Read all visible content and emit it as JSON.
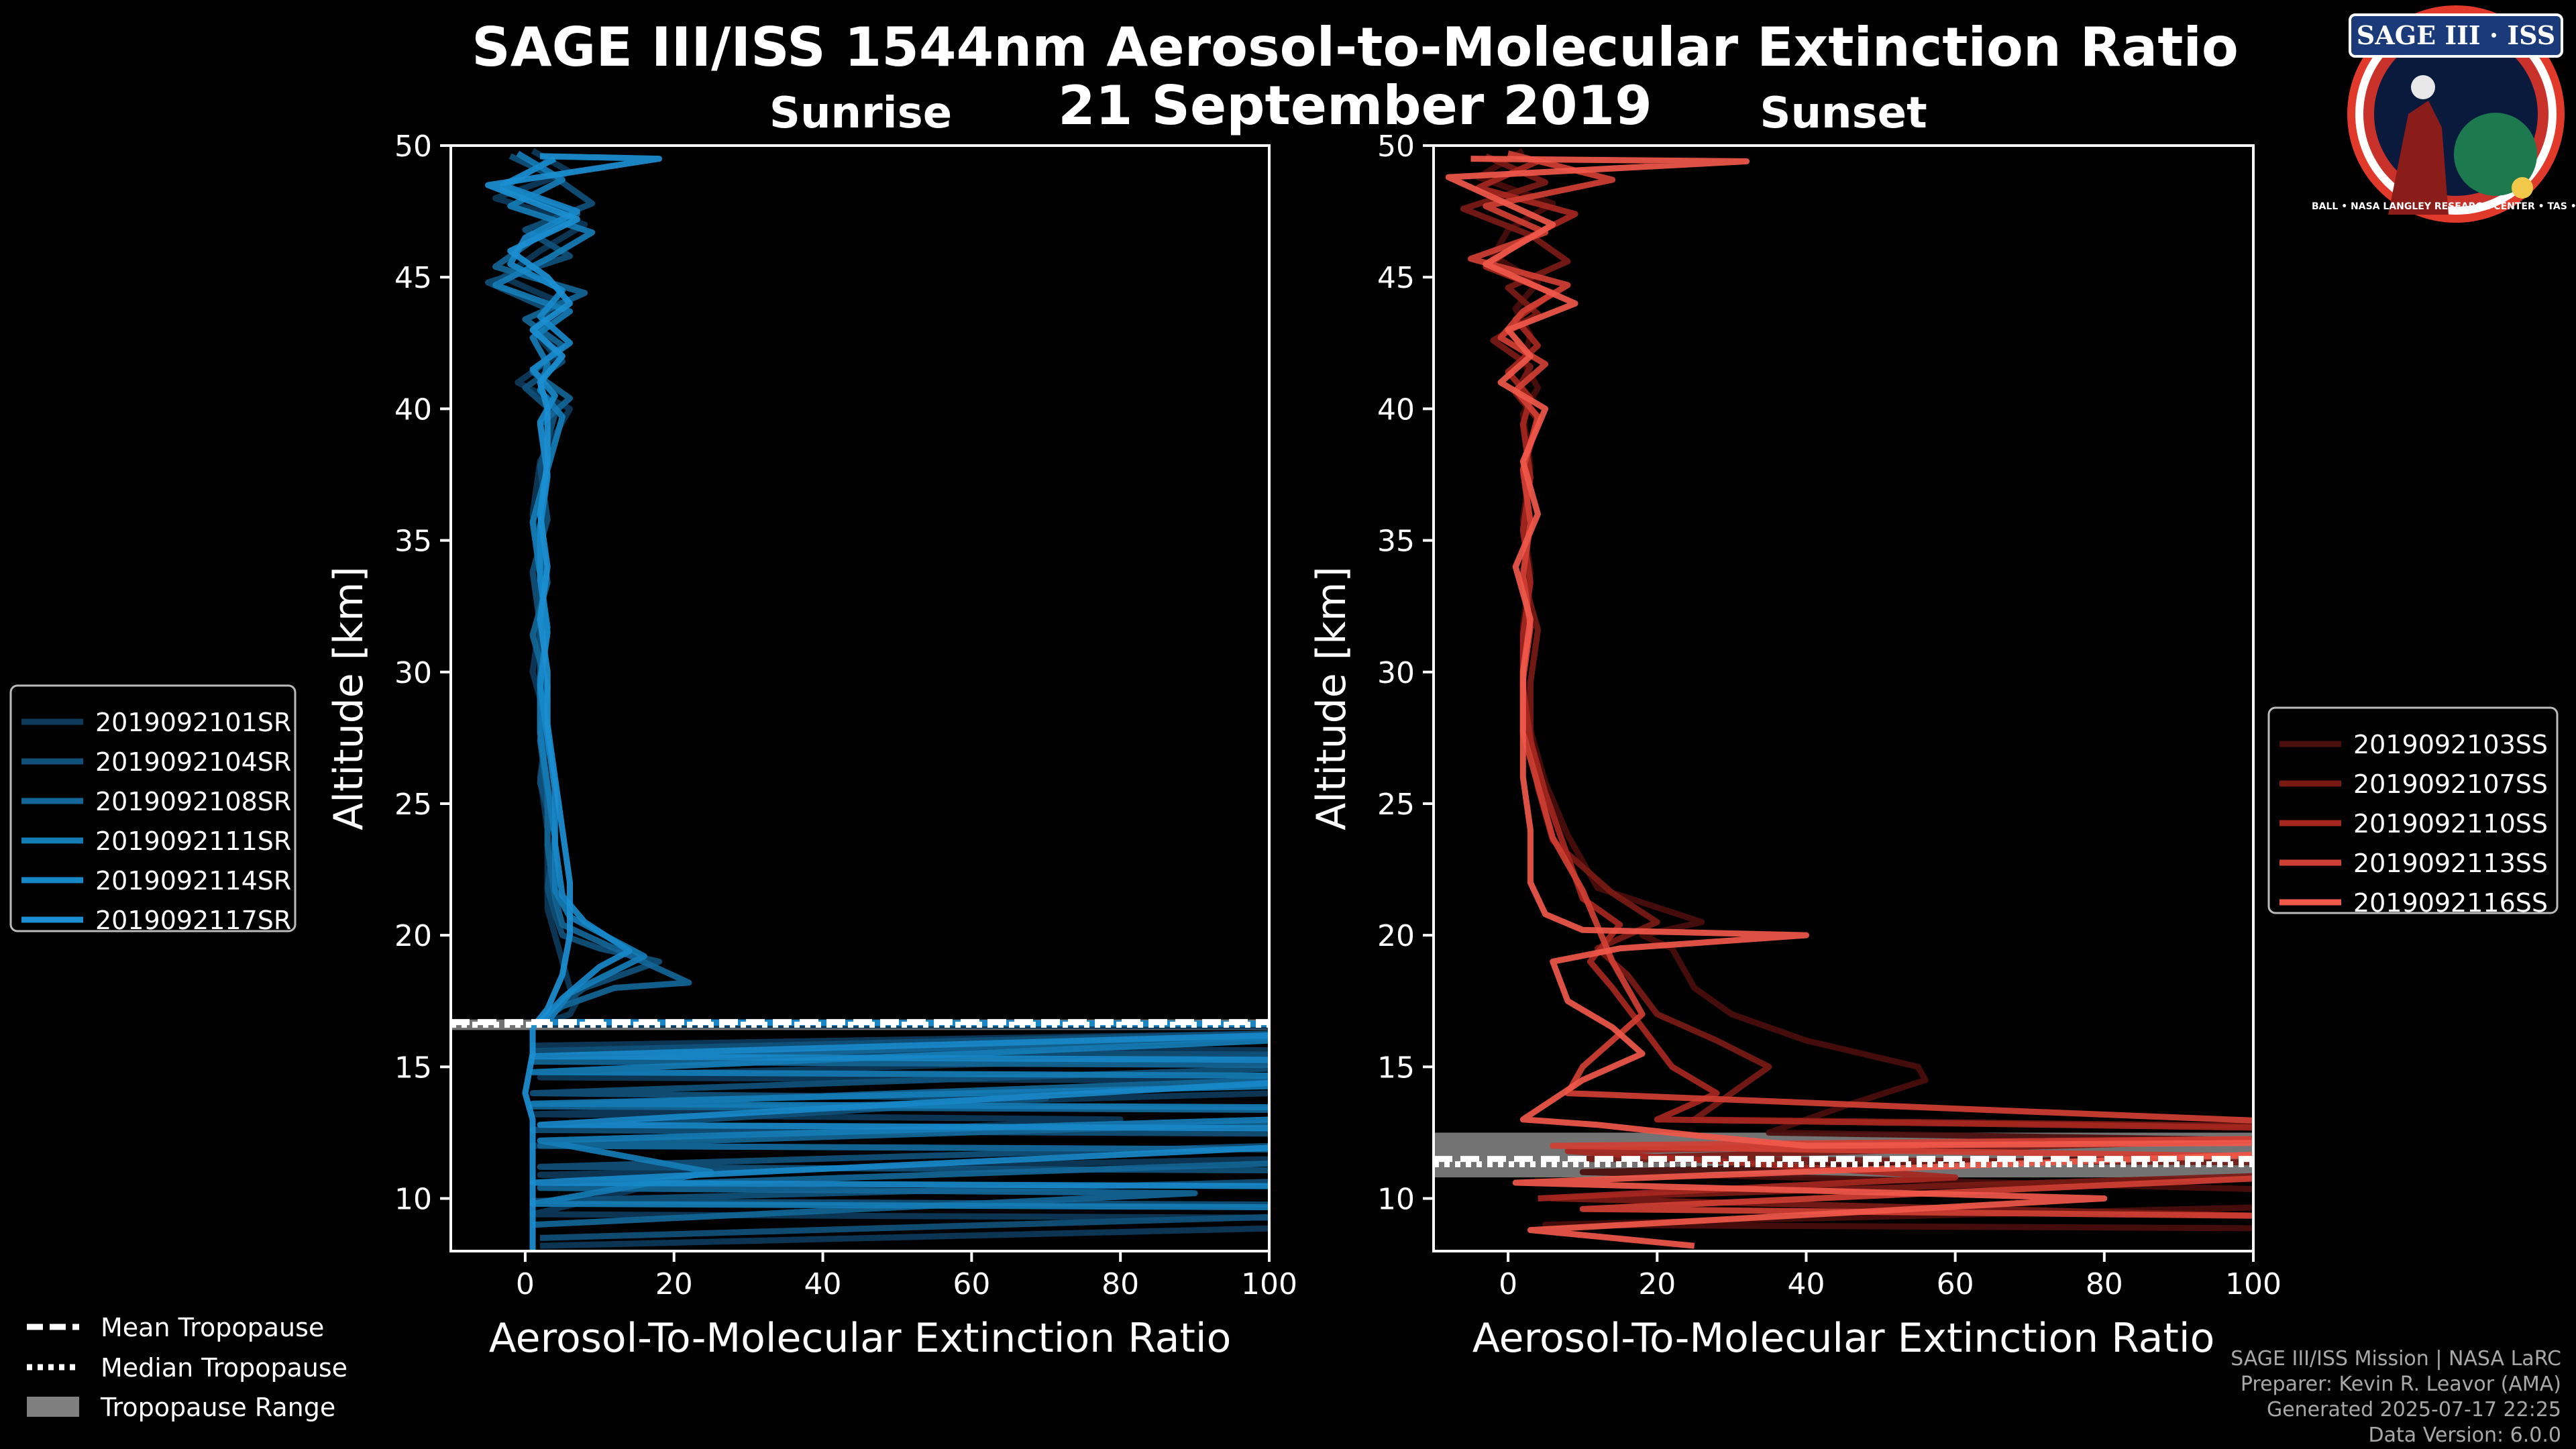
{
  "title": "SAGE III/ISS 1544nm Aerosol-to-Molecular Extinction Ratio",
  "date": "21 September 2019",
  "badge": {
    "name": "SAGE III · ISS",
    "rim_text": "BALL • NASA LANGLEY RESEARCH CENTER • TAS • ESA"
  },
  "colors": {
    "background": "#000000",
    "sunrise": "#1b8fd1",
    "sunset": "#f0584a",
    "range": "#7f7f7f"
  },
  "chart_data": [
    {
      "type": "line",
      "panel": "left",
      "subtitle": "Sunrise",
      "xlabel": "Aerosol-To-Molecular Extinction Ratio",
      "ylabel": "Altitude [km]",
      "xlim": [
        -10,
        100
      ],
      "ylim": [
        8,
        50
      ],
      "xticks": [
        0,
        20,
        40,
        60,
        80,
        100
      ],
      "yticks": [
        10,
        15,
        20,
        25,
        30,
        35,
        40,
        45,
        50
      ],
      "tropopause": {
        "mean": 16.7,
        "median": 16.6,
        "range": [
          16.4,
          16.8
        ]
      },
      "series": [
        {
          "name": "2019092101SR",
          "color": "#0d3a5a",
          "x": [
            1,
            6,
            -4,
            8,
            2,
            -3,
            5,
            1,
            4,
            -1,
            6,
            2,
            1,
            2,
            2,
            1,
            3,
            2,
            3,
            3,
            3,
            4,
            5,
            6,
            7,
            6,
            4,
            2,
            150,
            1,
            120,
            2,
            150,
            1,
            80,
            1,
            150,
            2,
            20,
            1,
            150,
            2
          ],
          "y": [
            49.8,
            49.0,
            48.0,
            47.0,
            46.0,
            45.0,
            44.0,
            43.0,
            42.0,
            41.0,
            40.0,
            38.0,
            36.0,
            34.0,
            32.0,
            30.0,
            28.0,
            26.0,
            24.0,
            22.0,
            21.0,
            20.0,
            19.0,
            18.0,
            17.5,
            17.0,
            16.8,
            16.6,
            16.5,
            15.8,
            15.6,
            14.6,
            14.4,
            13.2,
            13.0,
            12.0,
            11.8,
            10.9,
            10.7,
            9.4,
            9.2,
            8.2
          ]
        },
        {
          "name": "2019092104SR",
          "color": "#105079",
          "x": [
            -2,
            4,
            9,
            0,
            6,
            -5,
            3,
            2,
            5,
            0,
            4,
            2,
            3,
            1,
            2,
            2,
            3,
            2,
            4,
            3,
            4,
            5,
            10,
            18,
            8,
            4,
            2,
            150,
            1,
            150,
            1,
            70,
            1,
            150,
            2,
            150,
            1,
            150,
            2
          ],
          "y": [
            49.6,
            48.8,
            47.8,
            46.8,
            45.8,
            44.8,
            43.8,
            42.8,
            41.8,
            40.8,
            39.8,
            37.8,
            35.8,
            33.8,
            31.8,
            29.8,
            27.8,
            25.8,
            23.8,
            21.8,
            20.8,
            20.0,
            19.5,
            19.0,
            18.0,
            17.2,
            16.7,
            16.6,
            15.6,
            15.4,
            14.0,
            13.8,
            12.6,
            12.4,
            11.2,
            11.0,
            9.9,
            9.7,
            8.5
          ]
        },
        {
          "name": "2019092108SR",
          "color": "#136697",
          "x": [
            3,
            -3,
            7,
            1,
            -4,
            8,
            0,
            5,
            1,
            6,
            2,
            3,
            2,
            3,
            1,
            3,
            2,
            3,
            3,
            4,
            5,
            22,
            12,
            5,
            2,
            150,
            1,
            150,
            1,
            150,
            2,
            150,
            2,
            90,
            1
          ],
          "y": [
            49.4,
            48.4,
            47.4,
            46.4,
            45.4,
            44.4,
            43.4,
            42.4,
            41.4,
            40.4,
            39.4,
            37.4,
            35.4,
            33.4,
            31.4,
            29.4,
            27.4,
            25.4,
            23.4,
            21.4,
            20.4,
            18.2,
            18.0,
            17.3,
            16.7,
            16.6,
            15.2,
            15.0,
            13.5,
            13.3,
            12.0,
            11.8,
            10.4,
            10.2,
            9.0
          ]
        },
        {
          "name": "2019092111SR",
          "color": "#157cb6",
          "x": [
            -1,
            5,
            -2,
            9,
            3,
            -4,
            6,
            1,
            3,
            2,
            5,
            3,
            1,
            2,
            3,
            2,
            2,
            3,
            4,
            4,
            6,
            12,
            16,
            6,
            3,
            150,
            1,
            150,
            1,
            150,
            2,
            25,
            1,
            150
          ],
          "y": [
            49.7,
            48.7,
            47.7,
            46.7,
            45.7,
            44.7,
            43.7,
            42.7,
            41.7,
            40.7,
            39.7,
            37.7,
            35.7,
            33.7,
            31.7,
            29.7,
            27.7,
            25.7,
            23.7,
            21.7,
            20.7,
            19.8,
            19.2,
            17.8,
            16.7,
            16.6,
            14.8,
            14.6,
            13.6,
            13.4,
            12.2,
            11.0,
            9.8,
            9.6
          ]
        },
        {
          "name": "2019092114SR",
          "color": "#1888c9",
          "x": [
            4,
            -3,
            7,
            0,
            -2,
            5,
            2,
            6,
            1,
            4,
            2,
            3,
            2,
            2,
            3,
            2,
            3,
            4,
            4,
            5,
            8,
            14,
            10,
            5,
            2,
            150,
            1,
            150,
            2,
            150,
            1,
            150
          ],
          "y": [
            49.5,
            48.5,
            47.5,
            46.5,
            45.5,
            44.5,
            43.5,
            42.5,
            41.5,
            40.5,
            39.5,
            37.5,
            35.5,
            33.5,
            31.5,
            29.5,
            27.5,
            25.5,
            23.5,
            21.5,
            20.5,
            19.4,
            18.8,
            17.6,
            16.7,
            16.6,
            15.4,
            15.2,
            12.8,
            12.6,
            10.6,
            10.4
          ]
        },
        {
          "name": "2019092117SR",
          "color": "#1b8fd1",
          "x": [
            2,
            18,
            -5,
            7,
            -2,
            3,
            6,
            1,
            5,
            2,
            3,
            3,
            2,
            3,
            2,
            3,
            3,
            4,
            5,
            6,
            6,
            5,
            3,
            1,
            1,
            0,
            1,
            1,
            1,
            1,
            1
          ],
          "y": [
            49.6,
            49.5,
            48.5,
            47.2,
            46.0,
            45.0,
            44.0,
            43.0,
            42.0,
            41.0,
            40.0,
            38.0,
            36.0,
            34.0,
            32.0,
            30.0,
            28.0,
            26.0,
            24.0,
            22.0,
            20.0,
            18.5,
            17.2,
            16.5,
            15.5,
            14.0,
            13.0,
            12.0,
            11.0,
            10.0,
            8.0
          ]
        }
      ]
    },
    {
      "type": "line",
      "panel": "right",
      "subtitle": "Sunset",
      "xlabel": "Aerosol-To-Molecular Extinction Ratio",
      "ylabel": "Altitude [km]",
      "xlim": [
        -10,
        100
      ],
      "ylim": [
        8,
        50
      ],
      "xticks": [
        0,
        20,
        40,
        60,
        80,
        100
      ],
      "yticks": [
        10,
        15,
        20,
        25,
        30,
        35,
        40,
        45,
        50
      ],
      "tropopause": {
        "mean": 11.5,
        "median": 11.3,
        "range": [
          10.8,
          12.5
        ]
      },
      "series": [
        {
          "name": "2019092103SS",
          "color": "#4a0e0c",
          "x": [
            2,
            -4,
            6,
            0,
            -2,
            4,
            1,
            3,
            2,
            4,
            2,
            3,
            2,
            3,
            2,
            2,
            3,
            5,
            8,
            12,
            26,
            18,
            22,
            25,
            30,
            40,
            55,
            56,
            45,
            35,
            150,
            10,
            150,
            5,
            150
          ],
          "y": [
            49.8,
            48.8,
            47.8,
            46.8,
            45.8,
            44.8,
            43.8,
            42.8,
            41.8,
            40.8,
            39.8,
            37.8,
            35.8,
            33.8,
            31.8,
            29.8,
            27.8,
            25.8,
            23.8,
            21.8,
            20.5,
            20.0,
            19.5,
            18.0,
            17.0,
            16.0,
            15.0,
            14.5,
            13.5,
            12.5,
            12.0,
            11.0,
            10.0,
            9.0,
            8.8
          ]
        },
        {
          "name": "2019092107SS",
          "color": "#7a1a15",
          "x": [
            -3,
            5,
            -6,
            3,
            8,
            0,
            4,
            -2,
            3,
            1,
            4,
            2,
            3,
            2,
            4,
            3,
            3,
            4,
            6,
            14,
            20,
            12,
            16,
            20,
            28,
            35,
            30,
            25,
            150,
            10,
            150,
            6,
            150
          ],
          "y": [
            49.6,
            48.6,
            47.6,
            46.6,
            45.6,
            44.6,
            43.6,
            42.6,
            41.6,
            40.6,
            39.6,
            37.6,
            35.6,
            33.6,
            31.6,
            29.6,
            27.6,
            25.6,
            23.6,
            21.6,
            20.5,
            19.5,
            18.5,
            17.0,
            16.0,
            15.0,
            14.0,
            13.0,
            12.6,
            11.5,
            11.3,
            10.0,
            9.0
          ]
        },
        {
          "name": "2019092110SS",
          "color": "#a62720",
          "x": [
            4,
            -4,
            9,
            2,
            -3,
            6,
            1,
            4,
            0,
            3,
            2,
            3,
            2,
            3,
            2,
            2,
            3,
            5,
            10,
            15,
            11,
            14,
            18,
            22,
            28,
            20,
            150,
            8,
            60,
            4
          ],
          "y": [
            49.4,
            48.4,
            47.4,
            46.4,
            45.4,
            44.4,
            43.4,
            42.4,
            41.4,
            40.4,
            39.4,
            37.4,
            35.4,
            33.4,
            31.4,
            29.4,
            27.4,
            25.4,
            21.4,
            20.4,
            19.0,
            18.0,
            16.5,
            15.0,
            14.0,
            13.0,
            12.5,
            11.8,
            10.8,
            10.0
          ]
        },
        {
          "name": "2019092113SS",
          "color": "#d03f33",
          "x": [
            0,
            14,
            -3,
            5,
            -5,
            8,
            2,
            -1,
            5,
            1,
            4,
            2,
            3,
            2,
            3,
            2,
            2,
            4,
            6,
            10,
            14,
            18,
            14,
            10,
            8,
            150,
            6,
            150,
            10,
            150
          ],
          "y": [
            49.7,
            48.7,
            47.7,
            46.7,
            45.7,
            44.7,
            43.7,
            42.7,
            41.7,
            40.7,
            39.7,
            37.7,
            35.7,
            33.7,
            31.7,
            29.7,
            27.7,
            25.7,
            23.7,
            21.7,
            19.0,
            17.0,
            16.0,
            15.0,
            14.0,
            12.4,
            12.0,
            11.4,
            9.6,
            9.2
          ]
        },
        {
          "name": "2019092116SS",
          "color": "#f0584a",
          "x": [
            -5,
            32,
            -8,
            6,
            -3,
            9,
            0,
            3,
            -1,
            5,
            2,
            4,
            1,
            3,
            2,
            2,
            2,
            3,
            3,
            5,
            10,
            40,
            15,
            6,
            8,
            14,
            18,
            10,
            2,
            12,
            25,
            40,
            150,
            1,
            80,
            3,
            25
          ],
          "y": [
            49.5,
            49.4,
            48.8,
            47.0,
            45.5,
            44.0,
            43.0,
            42.0,
            41.0,
            40.0,
            38.0,
            36.0,
            34.0,
            32.0,
            30.0,
            28.0,
            26.0,
            24.0,
            22.0,
            20.8,
            20.2,
            20.0,
            19.5,
            19.0,
            17.5,
            16.5,
            15.5,
            14.5,
            13.0,
            12.8,
            12.4,
            12.0,
            12.2,
            10.6,
            10.0,
            8.8,
            8.2
          ]
        }
      ]
    }
  ],
  "legend_common": [
    "Mean Tropopause",
    "Median Tropopause",
    "Tropopause Range"
  ],
  "credits": [
    "SAGE III/ISS Mission | NASA LaRC",
    "Preparer: Kevin R. Leavor (AMA)",
    "Generated 2025-07-17 22:25",
    "Data Version: 6.0.0"
  ]
}
